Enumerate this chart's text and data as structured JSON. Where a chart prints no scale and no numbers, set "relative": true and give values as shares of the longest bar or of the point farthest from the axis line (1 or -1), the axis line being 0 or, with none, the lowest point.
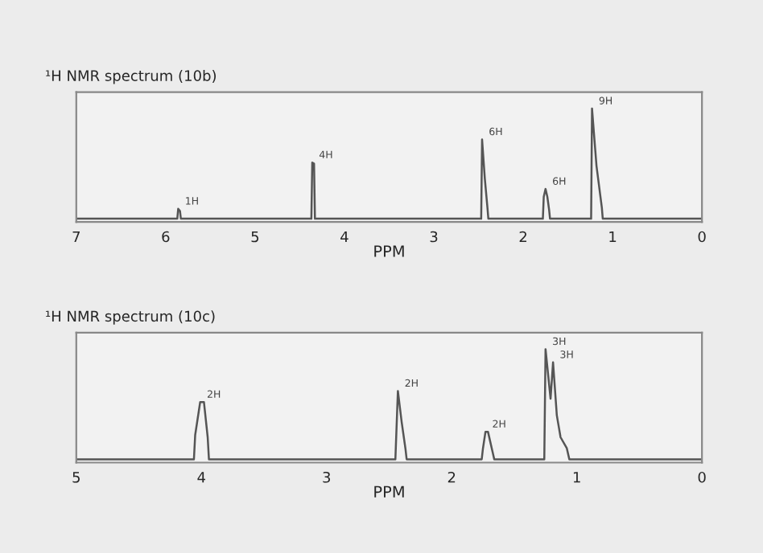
{
  "chart_data": [
    {
      "type": "line",
      "title": "¹H NMR spectrum (10b)",
      "xlabel": "PPM",
      "relative": true,
      "grid": false,
      "marker": "none",
      "line_style": "solid",
      "xlim": [
        7,
        0
      ],
      "xticks": [
        7,
        6,
        5,
        4,
        3,
        2,
        1,
        0
      ],
      "series": [
        {
          "color": "#555555",
          "x": [
            7,
            5.87,
            5.86,
            5.84,
            5.83,
            4.37,
            4.36,
            4.34,
            4.33,
            2.47,
            2.46,
            2.43,
            2.4,
            2.39,
            1.78,
            1.77,
            1.75,
            1.73,
            1.71,
            1.7,
            1.24,
            1.23,
            1.18,
            1.12,
            1.11,
            0
          ],
          "values": [
            0,
            0,
            0.09,
            0.07,
            0,
            0,
            0.51,
            0.5,
            0,
            0,
            0.72,
            0.37,
            0.1,
            0,
            0,
            0.2,
            0.27,
            0.2,
            0.08,
            0,
            0,
            1.0,
            0.48,
            0.1,
            0,
            0
          ]
        }
      ],
      "annotations": [
        {
          "text": "1H",
          "x": 5.86,
          "y": 0.09
        },
        {
          "text": "4H",
          "x": 4.36,
          "y": 0.51
        },
        {
          "text": "6H",
          "x": 2.46,
          "y": 0.72
        },
        {
          "text": "6H",
          "x": 1.75,
          "y": 0.27
        },
        {
          "text": "9H",
          "x": 1.23,
          "y": 1.0
        }
      ]
    },
    {
      "type": "line",
      "title": "¹H NMR spectrum (10c)",
      "xlabel": "PPM",
      "relative": true,
      "grid": false,
      "marker": "none",
      "line_style": "solid",
      "xlim": [
        5,
        0
      ],
      "xticks": [
        5,
        4,
        3,
        2,
        1,
        0
      ],
      "series": [
        {
          "color": "#555555",
          "x": [
            5,
            4.06,
            4.05,
            4.01,
            3.98,
            3.95,
            3.94,
            2.45,
            2.43,
            2.4,
            2.37,
            2.36,
            1.76,
            1.75,
            1.73,
            1.71,
            1.69,
            1.67,
            1.66,
            1.26,
            1.25,
            1.21,
            1.19,
            1.16,
            1.13,
            1.08,
            1.06,
            0
          ],
          "values": [
            0,
            0,
            0.22,
            0.52,
            0.52,
            0.2,
            0,
            0,
            0.62,
            0.34,
            0.1,
            0,
            0,
            0.1,
            0.25,
            0.25,
            0.15,
            0.05,
            0,
            0,
            1.0,
            0.55,
            0.88,
            0.4,
            0.2,
            0.1,
            0,
            0
          ]
        }
      ],
      "annotations": [
        {
          "text": "2H",
          "x": 4.01,
          "y": 0.52
        },
        {
          "text": "2H",
          "x": 2.43,
          "y": 0.62
        },
        {
          "text": "2H",
          "x": 1.73,
          "y": 0.25
        },
        {
          "text": "3H",
          "x": 1.25,
          "y": 1.0
        },
        {
          "text": "3H",
          "x": 1.19,
          "y": 0.88
        }
      ]
    }
  ]
}
